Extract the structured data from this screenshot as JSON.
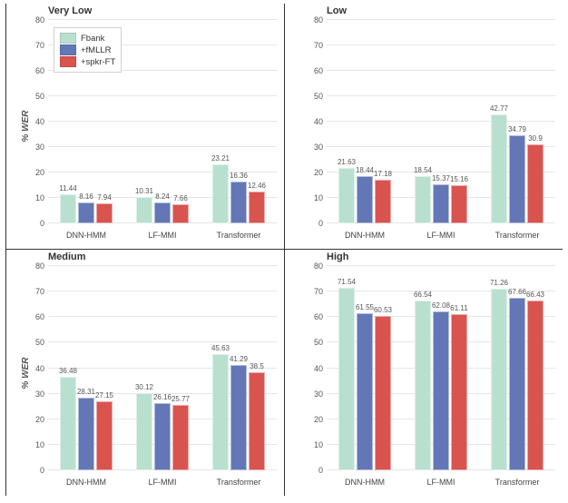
{
  "colors": {
    "series": [
      "#b9e0cf",
      "#6377b6",
      "#d9534f"
    ],
    "grid": "#e6e6e6",
    "background": "#ffffff",
    "text": "#555555",
    "border": "#333333"
  },
  "legend": {
    "items": [
      "Fbank",
      "+fMLLR",
      "+spkr-FT"
    ]
  },
  "xaxis": {
    "categories": [
      "DNN-HMM",
      "LF-MMI",
      "Transformer"
    ]
  },
  "ylabel": "% WER",
  "panels": [
    {
      "title": "Very Low",
      "ylim": [
        0,
        80
      ],
      "ytick_step": 10,
      "show_ylabel": true,
      "show_legend": true,
      "groups": [
        {
          "values": [
            11.44,
            8.16,
            7.94
          ]
        },
        {
          "values": [
            10.31,
            8.24,
            7.66
          ]
        },
        {
          "values": [
            23.21,
            16.36,
            12.46
          ]
        }
      ]
    },
    {
      "title": "Low",
      "ylim": [
        0,
        80
      ],
      "ytick_step": 10,
      "show_ylabel": false,
      "show_legend": false,
      "groups": [
        {
          "values": [
            21.63,
            18.44,
            17.18
          ]
        },
        {
          "values": [
            18.54,
            15.37,
            15.16
          ]
        },
        {
          "values": [
            42.77,
            34.79,
            30.9
          ]
        }
      ]
    },
    {
      "title": "Medium",
      "ylim": [
        0,
        80
      ],
      "ytick_step": 10,
      "show_ylabel": true,
      "show_legend": false,
      "groups": [
        {
          "values": [
            36.48,
            28.31,
            27.15
          ]
        },
        {
          "values": [
            30.12,
            26.16,
            25.77
          ]
        },
        {
          "values": [
            45.63,
            41.29,
            38.5
          ]
        }
      ]
    },
    {
      "title": "High",
      "ylim": [
        0,
        80
      ],
      "ytick_step": 10,
      "show_ylabel": false,
      "show_legend": false,
      "groups": [
        {
          "values": [
            71.54,
            61.55,
            60.53
          ]
        },
        {
          "values": [
            66.54,
            62.08,
            61.11
          ]
        },
        {
          "values": [
            71.26,
            67.66,
            66.43
          ]
        }
      ]
    }
  ]
}
